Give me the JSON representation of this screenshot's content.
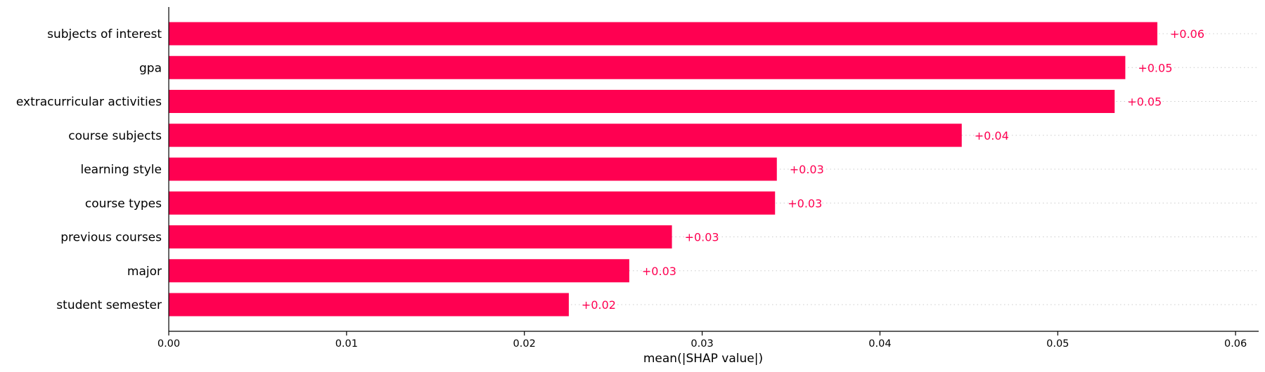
{
  "chart_data": {
    "type": "bar",
    "orientation": "horizontal",
    "categories": [
      "subjects of interest",
      "gpa",
      "extracurricular activities",
      "course subjects",
      "learning style",
      "course types",
      "previous courses",
      "major",
      "student semester"
    ],
    "values": [
      0.0556,
      0.0538,
      0.0532,
      0.0446,
      0.0342,
      0.0341,
      0.0283,
      0.0259,
      0.0225
    ],
    "value_labels": [
      "+0.06",
      "+0.05",
      "+0.05",
      "+0.04",
      "+0.03",
      "+0.03",
      "+0.03",
      "+0.03",
      "+0.02"
    ],
    "xlabel": "mean(|SHAP value|)",
    "ylabel": "",
    "title": "",
    "xlim": [
      0.0,
      0.0613
    ],
    "xticks": [
      0.0,
      0.01,
      0.02,
      0.03,
      0.04,
      0.05,
      0.06
    ],
    "xtick_labels": [
      "0.00",
      "0.01",
      "0.02",
      "0.03",
      "0.04",
      "0.05",
      "0.06"
    ],
    "grid": "dotted horizontal row lines",
    "legend": "none",
    "bar_color": "#ff0051",
    "label_color": "#ff0051",
    "gridline_color": "#cccccc"
  }
}
